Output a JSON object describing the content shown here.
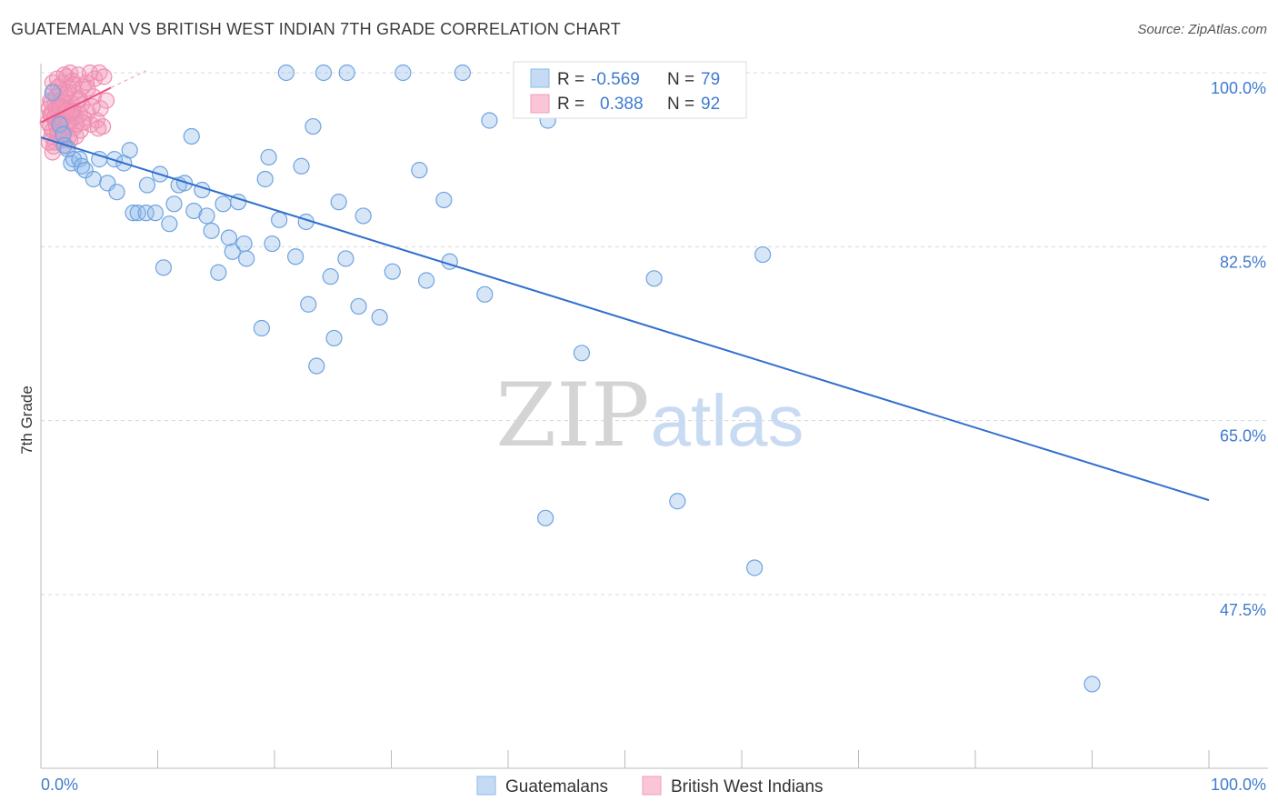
{
  "header": {
    "title": "GUATEMALAN VS BRITISH WEST INDIAN 7TH GRADE CORRELATION CHART",
    "source": "Source: ZipAtlas.com"
  },
  "watermark": {
    "zip": "ZIP",
    "atlas": "atlas"
  },
  "legend_box": {
    "rows": [
      {
        "r_label": "R =",
        "r_value": "-0.569",
        "n_label": "N =",
        "n_value": "79"
      },
      {
        "r_label": "R =",
        "r_value": "0.388",
        "n_label": "N =",
        "n_value": "92"
      }
    ]
  },
  "colors": {
    "blue": "#8db8e8",
    "blue_line": "#2f6fcf",
    "pink": "#f29bbb",
    "pink_line": "#e8507f",
    "accent_text": "#3f7bd0",
    "grid": "#d8d8d8"
  },
  "chart_data": {
    "type": "scatter",
    "title": "GUATEMALAN VS BRITISH WEST INDIAN 7TH GRADE CORRELATION CHART",
    "xlabel": "",
    "ylabel": "7th Grade",
    "xlim": [
      0,
      100
    ],
    "ylim": [
      31,
      102
    ],
    "x_tick_labels": [
      "0.0%",
      "100.0%"
    ],
    "y_ticks": [
      47.5,
      65.0,
      82.5,
      100.0
    ],
    "y_tick_labels": [
      "47.5%",
      "65.0%",
      "82.5%",
      "100.0%"
    ],
    "grid": true,
    "legend_position": "bottom",
    "series": [
      {
        "name": "Guatemalans",
        "color": "#8db8e8",
        "r": -0.569,
        "n": 79,
        "trend": {
          "x": [
            0,
            100
          ],
          "y": [
            93.5,
            57.0
          ]
        },
        "points": [
          [
            1.0,
            98.0
          ],
          [
            1.6,
            94.8
          ],
          [
            1.9,
            93.8
          ],
          [
            2.0,
            92.7
          ],
          [
            2.3,
            92.3
          ],
          [
            2.6,
            90.9
          ],
          [
            2.8,
            91.3
          ],
          [
            3.3,
            91.3
          ],
          [
            3.5,
            90.6
          ],
          [
            3.8,
            90.2
          ],
          [
            4.5,
            89.3
          ],
          [
            5.0,
            91.3
          ],
          [
            5.7,
            88.9
          ],
          [
            6.5,
            88.0
          ],
          [
            6.3,
            91.3
          ],
          [
            7.1,
            90.9
          ],
          [
            7.6,
            92.2
          ],
          [
            7.9,
            85.9
          ],
          [
            8.3,
            85.9
          ],
          [
            9.0,
            85.9
          ],
          [
            9.1,
            88.7
          ],
          [
            9.8,
            85.9
          ],
          [
            10.2,
            89.8
          ],
          [
            10.5,
            80.4
          ],
          [
            11.0,
            84.8
          ],
          [
            11.4,
            86.8
          ],
          [
            11.8,
            88.7
          ],
          [
            12.3,
            88.9
          ],
          [
            12.9,
            93.6
          ],
          [
            13.1,
            86.1
          ],
          [
            13.8,
            88.2
          ],
          [
            14.2,
            85.6
          ],
          [
            14.6,
            84.1
          ],
          [
            15.2,
            79.9
          ],
          [
            15.6,
            86.8
          ],
          [
            16.1,
            83.4
          ],
          [
            16.4,
            82.0
          ],
          [
            16.9,
            87.0
          ],
          [
            17.4,
            82.8
          ],
          [
            17.6,
            81.3
          ],
          [
            18.9,
            74.3
          ],
          [
            19.2,
            89.3
          ],
          [
            19.5,
            91.5
          ],
          [
            19.8,
            82.8
          ],
          [
            20.4,
            85.2
          ],
          [
            21.0,
            100.0
          ],
          [
            21.8,
            81.5
          ],
          [
            22.3,
            90.6
          ],
          [
            22.7,
            85.0
          ],
          [
            22.9,
            76.7
          ],
          [
            23.3,
            94.6
          ],
          [
            23.6,
            70.5
          ],
          [
            24.2,
            100.0
          ],
          [
            24.8,
            79.5
          ],
          [
            25.1,
            73.3
          ],
          [
            25.5,
            87.0
          ],
          [
            26.1,
            81.3
          ],
          [
            26.2,
            100.0
          ],
          [
            27.2,
            76.5
          ],
          [
            27.6,
            85.6
          ],
          [
            29.0,
            75.4
          ],
          [
            30.1,
            80.0
          ],
          [
            31.0,
            100.0
          ],
          [
            32.4,
            90.2
          ],
          [
            33.0,
            79.1
          ],
          [
            34.5,
            87.2
          ],
          [
            35.0,
            81.0
          ],
          [
            36.1,
            100.0
          ],
          [
            38.0,
            77.7
          ],
          [
            38.4,
            95.2
          ],
          [
            43.4,
            95.2
          ],
          [
            43.2,
            55.2
          ],
          [
            46.3,
            71.8
          ],
          [
            52.5,
            79.3
          ],
          [
            54.5,
            56.9
          ],
          [
            58.6,
            100.0
          ],
          [
            61.1,
            50.2
          ],
          [
            61.8,
            81.7
          ],
          [
            90.0,
            38.5
          ]
        ]
      },
      {
        "name": "British West Indians",
        "color": "#f29bbb",
        "r": 0.388,
        "n": 92,
        "trend": {
          "x": [
            0,
            6.0
          ],
          "y": [
            95.0,
            98.5
          ]
        },
        "points": [
          [
            0.6,
            95.0
          ],
          [
            0.7,
            96.4
          ],
          [
            0.8,
            94.6
          ],
          [
            0.8,
            97.2
          ],
          [
            0.9,
            93.6
          ],
          [
            0.9,
            95.8
          ],
          [
            1.0,
            92.0
          ],
          [
            1.0,
            94.2
          ],
          [
            1.0,
            96.0
          ],
          [
            1.1,
            98.2
          ],
          [
            1.1,
            95.4
          ],
          [
            1.2,
            93.0
          ],
          [
            1.2,
            96.8
          ],
          [
            1.3,
            94.8
          ],
          [
            1.3,
            97.6
          ],
          [
            1.4,
            95.2
          ],
          [
            1.4,
            99.4
          ],
          [
            1.5,
            93.8
          ],
          [
            1.5,
            96.2
          ],
          [
            1.6,
            95.6
          ],
          [
            1.6,
            98.0
          ],
          [
            1.7,
            94.4
          ],
          [
            1.7,
            96.6
          ],
          [
            1.8,
            97.4
          ],
          [
            1.8,
            95.0
          ],
          [
            1.9,
            99.0
          ],
          [
            1.9,
            93.4
          ],
          [
            2.0,
            96.0
          ],
          [
            2.0,
            94.0
          ],
          [
            2.1,
            97.8
          ],
          [
            2.1,
            95.4
          ],
          [
            2.2,
            99.6
          ],
          [
            2.2,
            92.6
          ],
          [
            2.3,
            96.4
          ],
          [
            2.3,
            94.8
          ],
          [
            2.4,
            98.4
          ],
          [
            2.4,
            95.8
          ],
          [
            2.5,
            100.0
          ],
          [
            2.5,
            93.2
          ],
          [
            2.6,
            97.0
          ],
          [
            2.6,
            95.2
          ],
          [
            2.7,
            99.2
          ],
          [
            2.8,
            96.2
          ],
          [
            2.8,
            94.4
          ],
          [
            2.9,
            98.0
          ],
          [
            3.0,
            95.6
          ],
          [
            3.0,
            93.6
          ],
          [
            3.1,
            97.2
          ],
          [
            3.2,
            99.8
          ],
          [
            3.3,
            95.8
          ],
          [
            3.4,
            94.2
          ],
          [
            3.5,
            96.8
          ],
          [
            3.6,
            98.6
          ],
          [
            3.7,
            95.4
          ],
          [
            3.9,
            99.0
          ],
          [
            4.0,
            96.0
          ],
          [
            4.2,
            100.0
          ],
          [
            4.3,
            94.8
          ],
          [
            4.5,
            97.6
          ],
          [
            4.6,
            99.4
          ],
          [
            4.8,
            95.2
          ],
          [
            5.0,
            100.0
          ],
          [
            5.1,
            96.4
          ],
          [
            5.3,
            94.6
          ],
          [
            5.4,
            99.6
          ],
          [
            5.6,
            97.2
          ],
          [
            0.7,
            93.0
          ],
          [
            0.8,
            95.8
          ],
          [
            0.9,
            97.0
          ],
          [
            1.0,
            99.0
          ],
          [
            1.1,
            92.6
          ],
          [
            1.2,
            95.6
          ],
          [
            1.3,
            96.4
          ],
          [
            1.4,
            94.0
          ],
          [
            1.5,
            98.6
          ],
          [
            1.6,
            96.6
          ],
          [
            1.7,
            93.2
          ],
          [
            1.8,
            95.4
          ],
          [
            1.9,
            97.0
          ],
          [
            2.0,
            99.8
          ],
          [
            2.1,
            94.6
          ],
          [
            2.2,
            96.2
          ],
          [
            2.3,
            98.0
          ],
          [
            2.4,
            93.6
          ],
          [
            2.6,
            96.0
          ],
          [
            2.8,
            98.8
          ],
          [
            3.0,
            94.8
          ],
          [
            3.3,
            97.4
          ],
          [
            3.6,
            95.0
          ],
          [
            4.0,
            98.4
          ],
          [
            4.4,
            96.6
          ],
          [
            4.9,
            94.4
          ]
        ]
      }
    ]
  }
}
